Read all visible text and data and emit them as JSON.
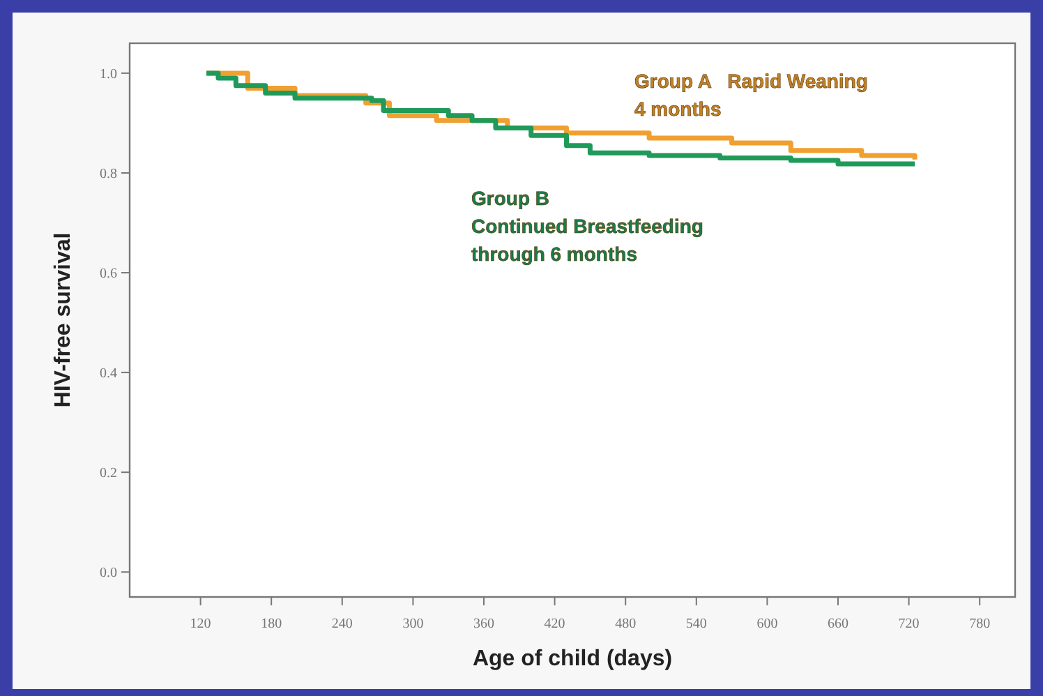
{
  "chart_data": {
    "type": "step",
    "xlabel": "Age of child (days)",
    "ylabel": "HIV-free survival",
    "xlim": [
      60,
      810
    ],
    "xticks": [
      120,
      180,
      240,
      300,
      360,
      420,
      480,
      540,
      600,
      660,
      720,
      780
    ],
    "ylim": [
      -0.05,
      1.06
    ],
    "yticks": [
      {
        "value": 0,
        "label": "0.0"
      },
      0.2,
      0.4,
      0.6,
      0.8,
      {
        "value": 1,
        "label": "1.0"
      }
    ],
    "grid": false,
    "legend": false,
    "line_style": "solid",
    "series": [
      {
        "name": "Group A   Rapid Weaning\n4 months",
        "color": "#f0a030",
        "x": [
          125,
          160,
          200,
          260,
          280,
          320,
          380,
          430,
          500,
          570,
          620,
          680,
          725
        ],
        "values": [
          1.0,
          0.97,
          0.955,
          0.94,
          0.915,
          0.905,
          0.89,
          0.88,
          0.87,
          0.86,
          0.845,
          0.835,
          0.827
        ]
      },
      {
        "name": "Group B\nContinued Breastfeeding\nthrough 6 months",
        "color": "#1f9a5a",
        "x": [
          125,
          135,
          150,
          175,
          200,
          265,
          275,
          330,
          350,
          370,
          400,
          430,
          450,
          500,
          560,
          620,
          660,
          725
        ],
        "values": [
          1.0,
          0.99,
          0.975,
          0.96,
          0.95,
          0.945,
          0.925,
          0.915,
          0.905,
          0.89,
          0.875,
          0.855,
          0.84,
          0.835,
          0.83,
          0.825,
          0.818,
          0.818
        ]
      }
    ]
  }
}
